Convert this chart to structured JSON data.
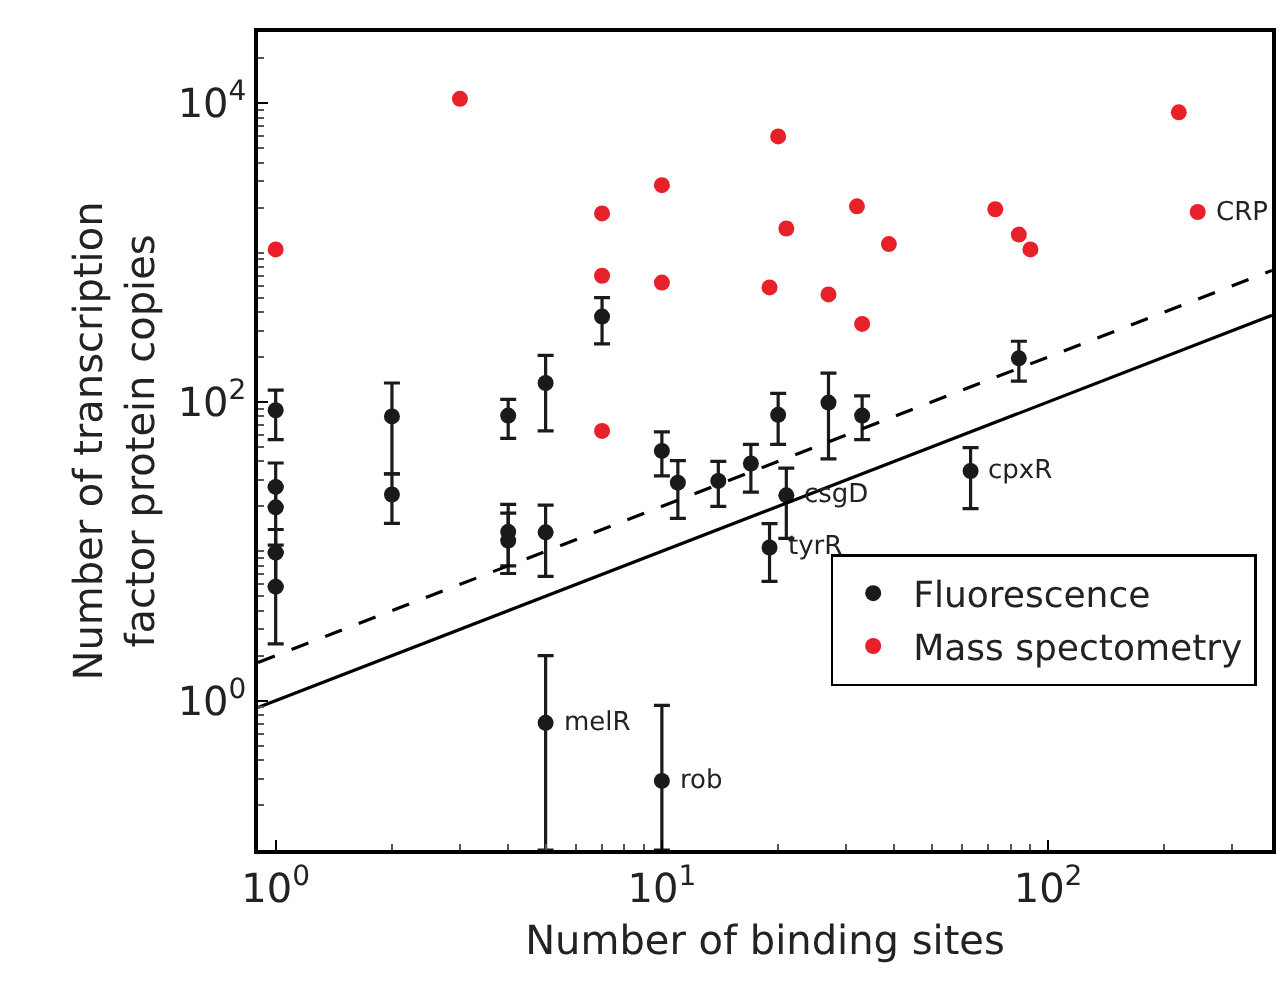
{
  "chart_data": {
    "type": "scatter",
    "xlabel": "Number of binding sites",
    "ylabel": "Number of transcription\nfactor protein copies",
    "log": "xy",
    "grid": false,
    "legend": "bottom right",
    "marker": "circle",
    "xlim": [
      0.9,
      380
    ],
    "ylim": [
      0.1,
      30000
    ],
    "xticks": [
      {
        "value": 1,
        "label": "10$^{0}$"
      },
      {
        "value": 10,
        "label": "10$^{1}$"
      },
      {
        "value": 100,
        "label": "10$^{2}$"
      }
    ],
    "yticks": [
      {
        "value": 1,
        "label": "10$^{0}$"
      },
      {
        "value": 100,
        "label": "10$^{2}$"
      },
      {
        "value": 10000,
        "label": "10$^{4}$"
      }
    ],
    "series": [
      {
        "name": "Fluorescence",
        "color": "#1a1a1a",
        "x": [
          1,
          1,
          1,
          1,
          1,
          2,
          2,
          4,
          4,
          4,
          5,
          5,
          5,
          7,
          10,
          10,
          11,
          14,
          17,
          19,
          20,
          21,
          27,
          33,
          63,
          84
        ],
        "values": [
          88,
          27,
          19.7,
          9.8,
          5.8,
          80,
          24,
          81,
          13.5,
          11.8,
          134,
          13.4,
          0.71,
          373,
          47,
          0.29,
          28.8,
          29.6,
          38.7,
          10.6,
          82,
          23.7,
          99,
          81,
          34.5,
          196
        ],
        "errors": [
          [
            56,
            120
          ],
          [
            20,
            39
          ],
          [
            11,
            27
          ],
          [
            5.8,
            14
          ],
          [
            2.4,
            9.8
          ],
          [
            33,
            134
          ],
          [
            15.4,
            33
          ],
          [
            57,
            104
          ],
          [
            8,
            20.6
          ],
          [
            7.1,
            18
          ],
          [
            64,
            205
          ],
          [
            6.8,
            20.4
          ],
          [
            0.1,
            2.0
          ],
          [
            245,
            500
          ],
          [
            32,
            63
          ],
          [
            0.1,
            0.93
          ],
          [
            16.6,
            40.5
          ],
          [
            20,
            40
          ],
          [
            24.9,
            52
          ],
          [
            6.3,
            15.3
          ],
          [
            52,
            114
          ],
          [
            12.2,
            36
          ],
          [
            41.6,
            156
          ],
          [
            56,
            110
          ],
          [
            19.3,
            49.5
          ],
          [
            138,
            255
          ]
        ]
      },
      {
        "name": "Mass spectometry",
        "color": "#e8202a",
        "x": [
          1,
          3,
          7,
          7,
          7,
          10,
          10,
          20,
          21,
          19,
          32,
          27,
          33,
          38.7,
          73,
          84,
          90,
          218,
          244
        ],
        "values": [
          1050,
          10700,
          1830,
          700,
          64,
          2830,
          630,
          6000,
          1450,
          585,
          2040,
          525,
          333,
          1140,
          1950,
          1320,
          1050,
          8700,
          1870
        ]
      },
      {
        "type": "line",
        "color": "#000000",
        "marker": "none",
        "line_style": "dashed",
        "x": [
          0.9,
          380
        ],
        "values": [
          1.8,
          760
        ]
      },
      {
        "type": "line",
        "color": "#000000",
        "marker": "none",
        "line_style": "solid",
        "x": [
          0.9,
          380
        ],
        "values": [
          0.9,
          380
        ]
      }
    ],
    "annotations": [
      {
        "text": "CRP",
        "x": 244,
        "y": 1870
      },
      {
        "text": "cpxR",
        "x": 63,
        "y": 34.5
      },
      {
        "text": "csgD",
        "x": 21,
        "y": 23.7
      },
      {
        "text": "tyrR",
        "x": 19,
        "y": 10.6
      },
      {
        "text": "melR",
        "x": 5,
        "y": 0.71
      },
      {
        "text": "rob",
        "x": 10,
        "y": 0.29
      }
    ]
  }
}
